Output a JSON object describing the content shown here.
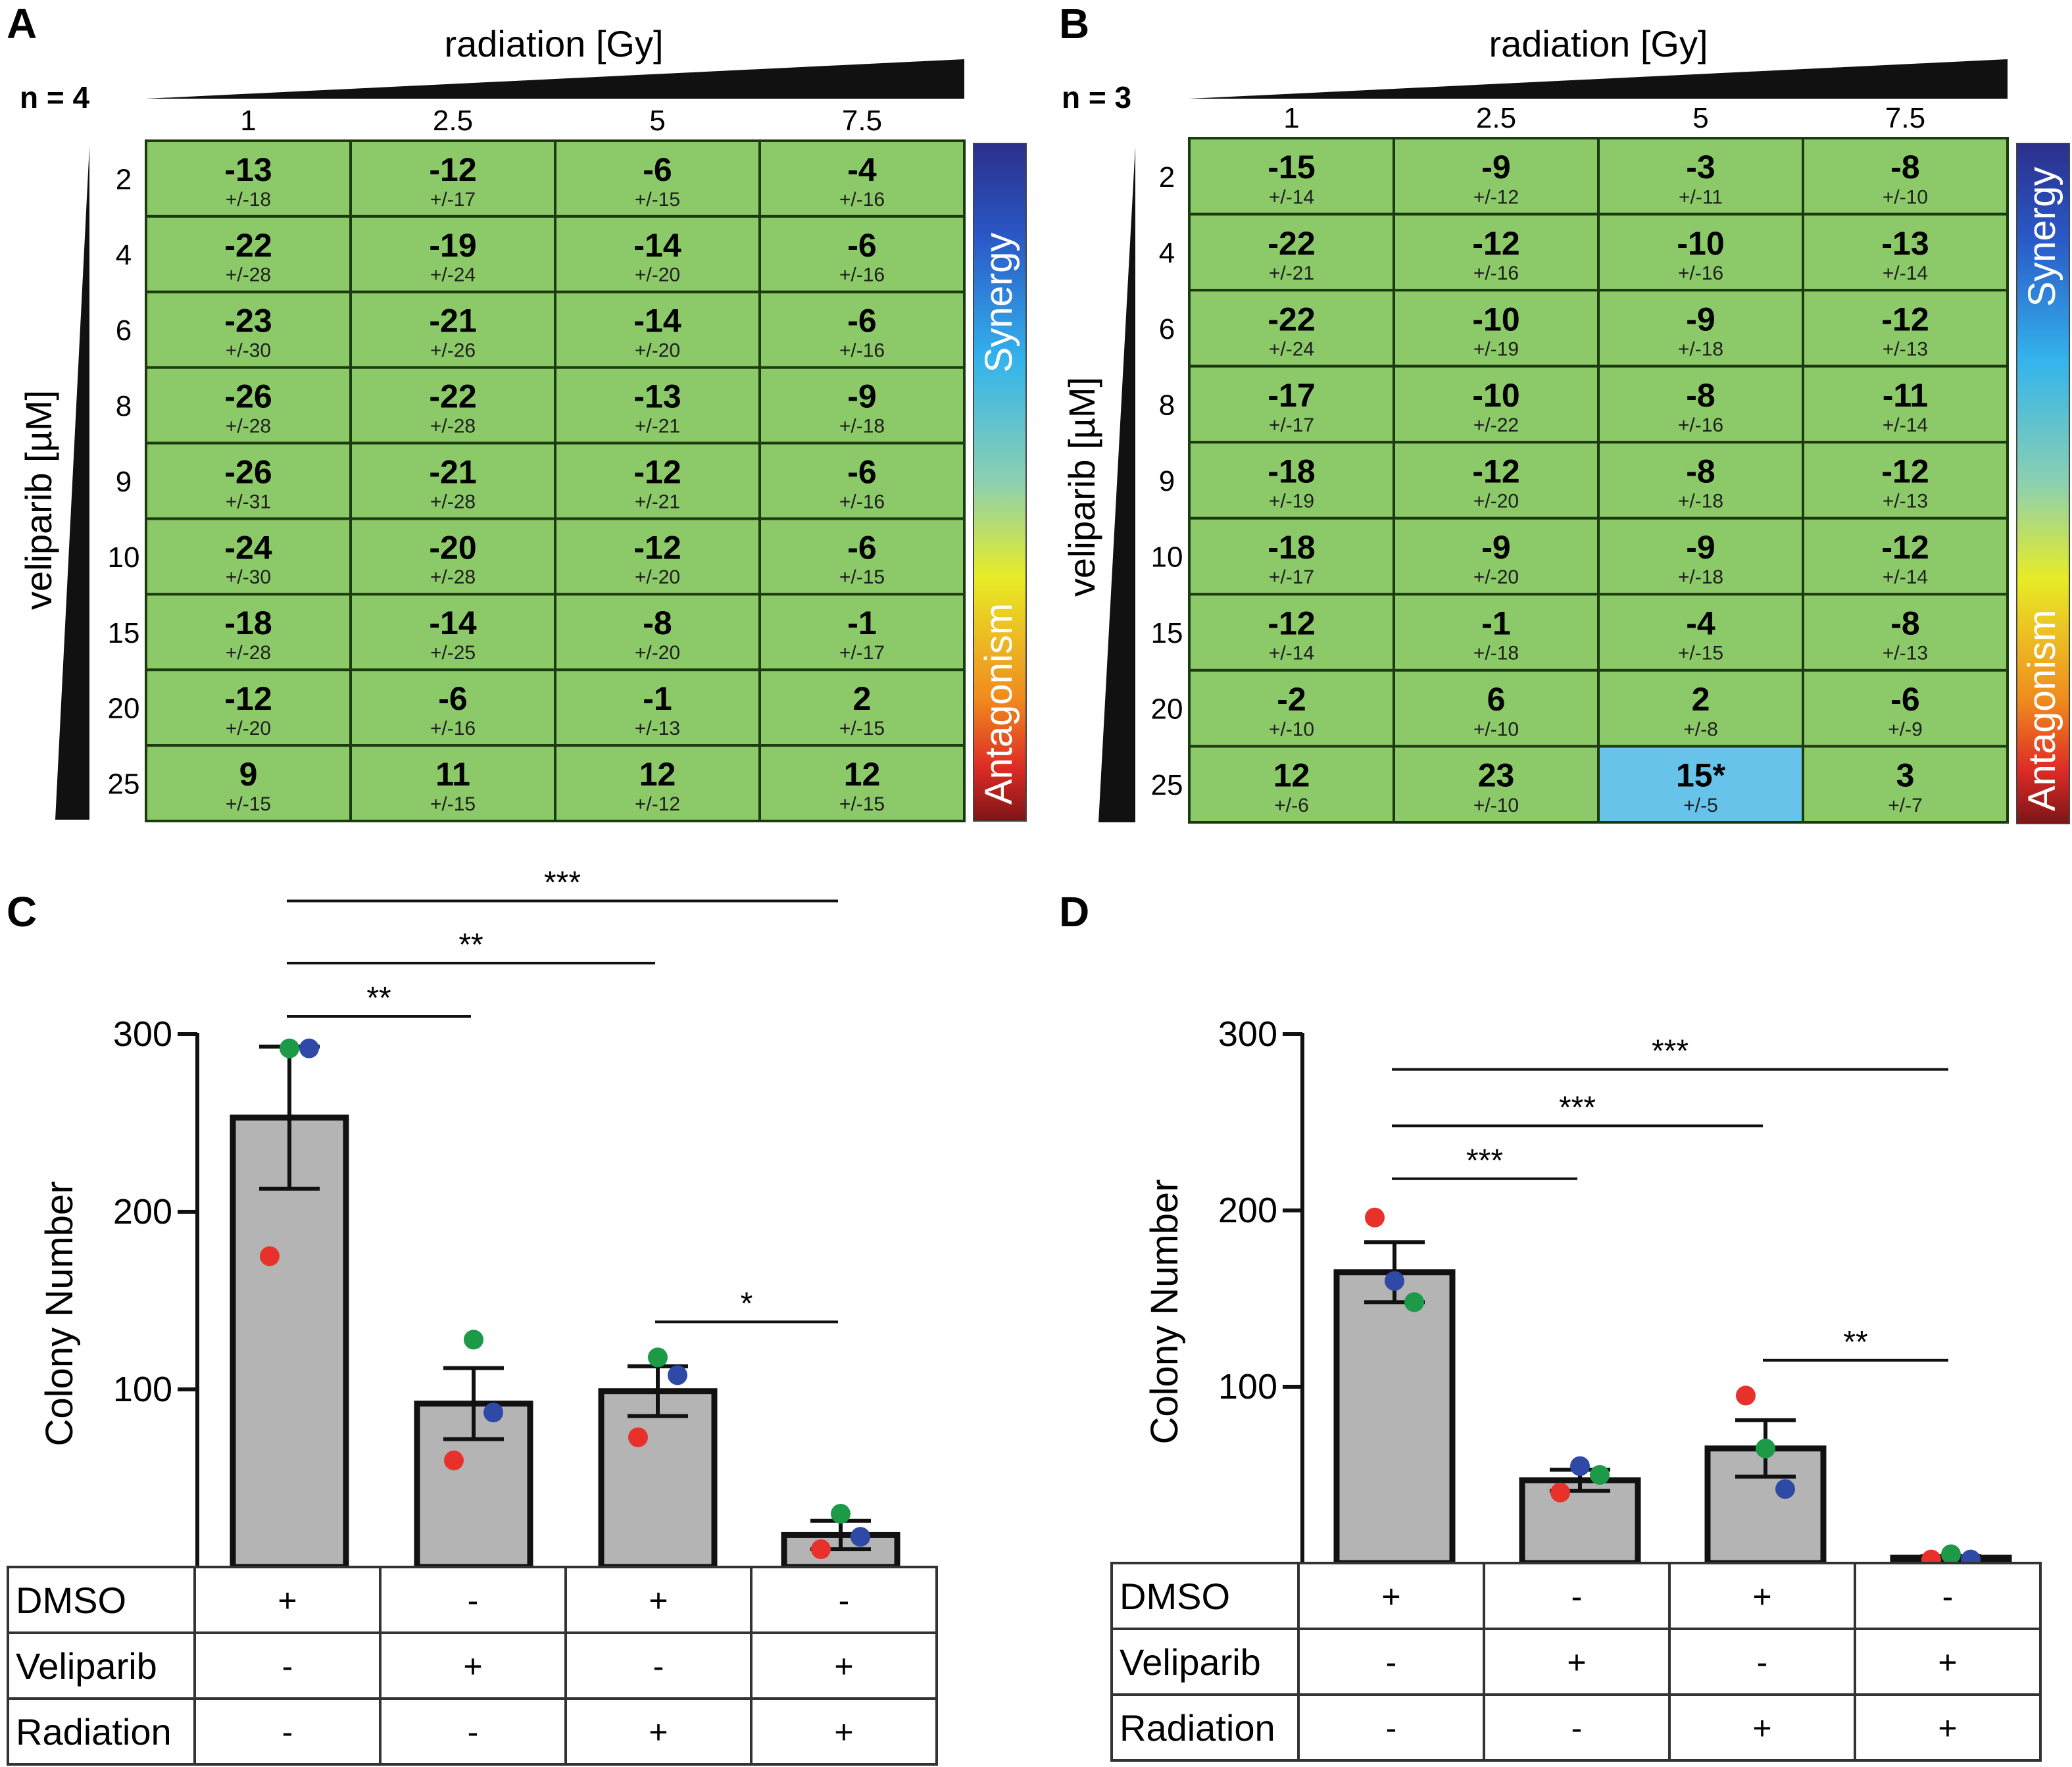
{
  "panels": {
    "A": {
      "label": "A",
      "n_label": "n = 4"
    },
    "B": {
      "label": "B",
      "n_label": "n = 3"
    },
    "C": {
      "label": "C"
    },
    "D": {
      "label": "D"
    }
  },
  "heatmap_axes": {
    "x_title": "radiation [Gy]",
    "y_title": "veliparib [µM]",
    "x_ticks": [
      "1",
      "2.5",
      "5",
      "7.5"
    ],
    "y_ticks": [
      "2",
      "4",
      "6",
      "8",
      "9",
      "10",
      "15",
      "20",
      "25"
    ],
    "colorbar_top": "Synergy",
    "colorbar_bottom": "Antagonism"
  },
  "colors": {
    "cell_green": "#8cc968",
    "cell_blue": "#67c3ea",
    "grid_line": "#1b3a10",
    "bar_fill": "#b4b4b4",
    "dot_red": "#e8312a",
    "dot_green": "#1c9a48",
    "dot_blue": "#2f4aa6"
  },
  "treatment_table": {
    "rows": [
      {
        "label": "DMSO",
        "signs": [
          "+",
          "-",
          "+",
          "-"
        ]
      },
      {
        "label": "Veliparib",
        "signs": [
          "-",
          "+",
          "-",
          "+"
        ]
      },
      {
        "label": "Radiation",
        "signs": [
          "-",
          "-",
          "+",
          "+"
        ]
      }
    ]
  },
  "chart_data": [
    {
      "panel": "A",
      "type": "heatmap",
      "title": "",
      "xlabel": "radiation [Gy]",
      "ylabel": "veliparib [µM]",
      "x": [
        "1",
        "2.5",
        "5",
        "7.5"
      ],
      "y": [
        "2",
        "4",
        "6",
        "8",
        "9",
        "10",
        "15",
        "20",
        "25"
      ],
      "values": [
        [
          -13,
          -12,
          -6,
          -4
        ],
        [
          -22,
          -19,
          -14,
          -6
        ],
        [
          -23,
          -21,
          -14,
          -6
        ],
        [
          -26,
          -22,
          -13,
          -9
        ],
        [
          -26,
          -21,
          -12,
          -6
        ],
        [
          -24,
          -20,
          -12,
          -6
        ],
        [
          -18,
          -14,
          -8,
          -1
        ],
        [
          -12,
          -6,
          -1,
          2
        ],
        [
          9,
          11,
          12,
          12
        ]
      ],
      "errors": [
        [
          "+/-18",
          "+/-17",
          "+/-15",
          "+/-16"
        ],
        [
          "+/-28",
          "+/-24",
          "+/-20",
          "+/-16"
        ],
        [
          "+/-30",
          "+/-26",
          "+/-20",
          "+/-16"
        ],
        [
          "+/-28",
          "+/-28",
          "+/-21",
          "+/-18"
        ],
        [
          "+/-31",
          "+/-28",
          "+/-21",
          "+/-16"
        ],
        [
          "+/-30",
          "+/-28",
          "+/-20",
          "+/-15"
        ],
        [
          "+/-28",
          "+/-25",
          "+/-20",
          "+/-17"
        ],
        [
          "+/-20",
          "+/-16",
          "+/-13",
          "+/-15"
        ],
        [
          "+/-15",
          "+/-15",
          "+/-12",
          "+/-15"
        ]
      ],
      "highlight": []
    },
    {
      "panel": "B",
      "type": "heatmap",
      "title": "",
      "xlabel": "radiation [Gy]",
      "ylabel": "veliparib [µM]",
      "x": [
        "1",
        "2.5",
        "5",
        "7.5"
      ],
      "y": [
        "2",
        "4",
        "6",
        "8",
        "9",
        "10",
        "15",
        "20",
        "25"
      ],
      "values": [
        [
          "-15",
          "-9",
          "-3",
          "-8"
        ],
        [
          "-22",
          "-12",
          "-10",
          "-13"
        ],
        [
          "-22",
          "-10",
          "-9",
          "-12"
        ],
        [
          "-17",
          "-10",
          "-8",
          "-11"
        ],
        [
          "-18",
          "-12",
          "-8",
          "-12"
        ],
        [
          "-18",
          "-9",
          "-9",
          "-12"
        ],
        [
          "-12",
          "-1",
          "-4",
          "-8"
        ],
        [
          "-2",
          "6",
          "2",
          "-6"
        ],
        [
          "12",
          "23",
          "15*",
          "3"
        ]
      ],
      "errors": [
        [
          "+/-14",
          "+/-12",
          "+/-11",
          "+/-10"
        ],
        [
          "+/-21",
          "+/-16",
          "+/-16",
          "+/-14"
        ],
        [
          "+/-24",
          "+/-19",
          "+/-18",
          "+/-13"
        ],
        [
          "+/-17",
          "+/-22",
          "+/-16",
          "+/-14"
        ],
        [
          "+/-19",
          "+/-20",
          "+/-18",
          "+/-13"
        ],
        [
          "+/-17",
          "+/-20",
          "+/-18",
          "+/-14"
        ],
        [
          "+/-14",
          "+/-18",
          "+/-15",
          "+/-13"
        ],
        [
          "+/-10",
          "+/-10",
          "+/-8",
          "+/-9"
        ],
        [
          "+/-6",
          "+/-10",
          "+/-5",
          "+/-7"
        ]
      ],
      "highlight": [
        [
          8,
          2
        ]
      ]
    },
    {
      "panel": "C",
      "type": "bar",
      "title": "",
      "xlabel": "",
      "ylabel": "Colony Number",
      "ylim": [
        0,
        300
      ],
      "yticks": [
        100,
        200,
        300
      ],
      "categories": [
        "DMSO",
        "Veliparib",
        "Radiation",
        "Veliparib + Radiation"
      ],
      "values": [
        253,
        92,
        99,
        18
      ],
      "sem": [
        40,
        20,
        14,
        8
      ],
      "points": [
        [
          {
            "c": "red",
            "v": 175
          },
          {
            "c": "green",
            "v": 292
          },
          {
            "c": "blue",
            "v": 292
          }
        ],
        [
          {
            "c": "red",
            "v": 60
          },
          {
            "c": "green",
            "v": 128
          },
          {
            "c": "blue",
            "v": 87
          }
        ],
        [
          {
            "c": "red",
            "v": 73
          },
          {
            "c": "green",
            "v": 118
          },
          {
            "c": "blue",
            "v": 108
          }
        ],
        [
          {
            "c": "red",
            "v": 10
          },
          {
            "c": "green",
            "v": 30
          },
          {
            "c": "blue",
            "v": 17
          }
        ]
      ],
      "significance": [
        {
          "from": 0,
          "to": 1,
          "label": "**",
          "y": 310
        },
        {
          "from": 0,
          "to": 2,
          "label": "**",
          "y": 340
        },
        {
          "from": 0,
          "to": 3,
          "label": "***",
          "y": 375
        },
        {
          "from": 2,
          "to": 3,
          "label": "*",
          "y": 138
        }
      ]
    },
    {
      "panel": "D",
      "type": "bar",
      "title": "",
      "xlabel": "",
      "ylabel": "Colony Number",
      "ylim": [
        0,
        300
      ],
      "yticks": [
        100,
        200,
        300
      ],
      "categories": [
        "DMSO",
        "Veliparib",
        "Radiation",
        "Veliparib + Radiation"
      ],
      "values": [
        165,
        47,
        65,
        3
      ],
      "sem": [
        17,
        6,
        16,
        1
      ],
      "points": [
        [
          {
            "c": "red",
            "v": 196
          },
          {
            "c": "blue",
            "v": 160
          },
          {
            "c": "green",
            "v": 148
          }
        ],
        [
          {
            "c": "red",
            "v": 40
          },
          {
            "c": "blue",
            "v": 55
          },
          {
            "c": "green",
            "v": 50
          }
        ],
        [
          {
            "c": "red",
            "v": 95
          },
          {
            "c": "green",
            "v": 65
          },
          {
            "c": "blue",
            "v": 42
          }
        ],
        [
          {
            "c": "red",
            "v": 2
          },
          {
            "c": "green",
            "v": 5
          },
          {
            "c": "blue",
            "v": 2
          }
        ]
      ],
      "significance": [
        {
          "from": 0,
          "to": 1,
          "label": "***",
          "y": 218
        },
        {
          "from": 0,
          "to": 2,
          "label": "***",
          "y": 248
        },
        {
          "from": 0,
          "to": 3,
          "label": "***",
          "y": 280
        },
        {
          "from": 2,
          "to": 3,
          "label": "**",
          "y": 115
        }
      ]
    }
  ]
}
